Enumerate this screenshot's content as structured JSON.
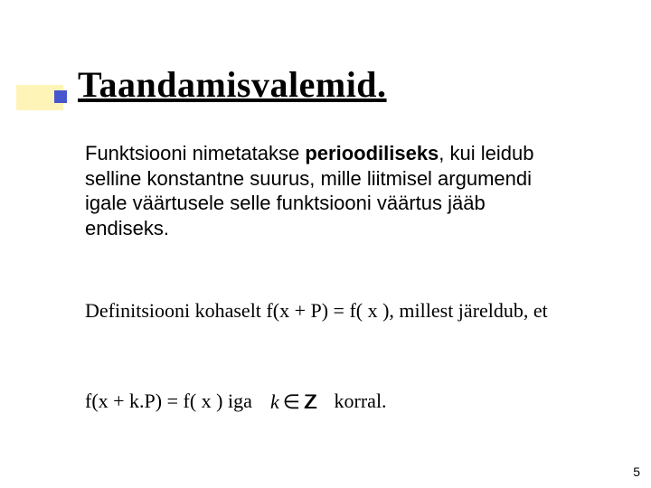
{
  "accent": {
    "color": "#fff4b8"
  },
  "bullet": {
    "color": "#4756cc"
  },
  "title": "Taandamisvalemid.",
  "para1": {
    "pre": "Funktsiooni nimetatakse ",
    "bold": "perioodiliseks",
    "post": ", kui leidub selline konstantne suurus, mille liitmisel argumendi igale väärtusele selle funktsiooni väärtus jääb endiseks."
  },
  "para2": "Definitsiooni kohaselt   f(x + P) = f( x ), millest järeldub, et",
  "line3": {
    "left": "f(x + k.P) = f( x ) iga",
    "mathvar": "k",
    "in": "∈",
    "set": "Z",
    "right": "korral."
  },
  "page": "5",
  "fontsize": {
    "title": 40,
    "body": 22,
    "pagenum": 14
  },
  "colors": {
    "text": "#000000",
    "background": "#ffffff"
  }
}
